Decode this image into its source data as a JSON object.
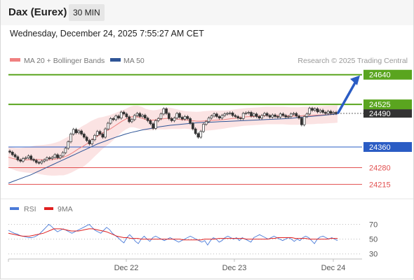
{
  "header": {
    "title": "Dax (Eurex)",
    "timeframe": "30 MIN"
  },
  "datetime": "Wednesday, December 24, 2025 7:55:27 AM CET",
  "legend": {
    "ma20_label": "MA 20 + Bollinger Bands",
    "ma50_label": "MA 50",
    "credit": "Research © 2025 Trading Central"
  },
  "colors": {
    "resistance": "#5aa51f",
    "support": "#2a5cc4",
    "target": "#e25050",
    "ma20": "#f08080",
    "band": "#fbe3e3",
    "ma50": "#2f5597",
    "candle_up": "#2f8a2f",
    "candle_down": "#cc2a2a",
    "current": "#333333",
    "rsi": "#4b7bd8",
    "rsi_ma": "#e02020",
    "arrow": "#2a5cc4"
  },
  "chart_data": [
    {
      "type": "candlestick",
      "title": "Dax (Eurex)",
      "timeframe": "30 MIN",
      "xlabels": [
        "Dec 22",
        "Dec 23",
        "Dec 24"
      ],
      "ylim": [
        24170,
        24680
      ],
      "levels": [
        {
          "value": 24640,
          "label": "24640",
          "kind": "resistance"
        },
        {
          "value": 24525,
          "label": "24525",
          "kind": "resistance"
        },
        {
          "value": 24360,
          "label": "24360",
          "kind": "support"
        },
        {
          "value": 24280,
          "label": "24280",
          "kind": "target"
        },
        {
          "value": 24215,
          "label": "24215",
          "kind": "target"
        }
      ],
      "current": {
        "value": 24490,
        "label": "24490"
      },
      "closes": [
        24340,
        24330,
        24322,
        24310,
        24305,
        24315,
        24318,
        24325,
        24312,
        24308,
        24300,
        24298,
        24305,
        24310,
        24318,
        24315,
        24320,
        24330,
        24318,
        24325,
        24338,
        24355,
        24380,
        24410,
        24428,
        24415,
        24422,
        24410,
        24398,
        24385,
        24372,
        24388,
        24405,
        24420,
        24410,
        24398,
        24430,
        24452,
        24470,
        24466,
        24480,
        24472,
        24495,
        24488,
        24477,
        24458,
        24466,
        24482,
        24490,
        24478,
        24483,
        24472,
        24462,
        24450,
        24432,
        24462,
        24470,
        24488,
        24508,
        24490,
        24470,
        24462,
        24472,
        24490,
        24475,
        24468,
        24478,
        24470,
        24452,
        24430,
        24412,
        24398,
        24420,
        24448,
        24458,
        24472,
        24480,
        24488,
        24478,
        24472,
        24482,
        24488,
        24490,
        24492,
        24482,
        24478,
        24472,
        24470,
        24490,
        24492,
        24494,
        24480,
        24488,
        24478,
        24472,
        24482,
        24490,
        24482,
        24476,
        24484,
        24478,
        24476,
        24488,
        24482,
        24476,
        24478,
        24488,
        24490,
        24480,
        24472,
        24446,
        24478,
        24488,
        24510,
        24502,
        24508,
        24496,
        24502,
        24494,
        24490,
        24498,
        24490,
        24494,
        24490
      ],
      "ma20": [
        24320,
        24316,
        24312,
        24310,
        24310,
        24310,
        24311,
        24312,
        24311,
        24310,
        24310,
        24311,
        24313,
        24316,
        24320,
        24326,
        24334,
        24344,
        24354,
        24362,
        24372,
        24384,
        24395,
        24405,
        24414,
        24422,
        24430,
        24440,
        24450,
        24460,
        24468,
        24476,
        24478,
        24476,
        24472,
        24466,
        24464,
        24464,
        24466,
        24468,
        24470,
        24471,
        24470,
        24468,
        24466,
        24465,
        24464,
        24462,
        24460,
        24460,
        24461,
        24462,
        24463,
        24464,
        24465,
        24466,
        24468,
        24470,
        24472,
        24474,
        24476,
        24477,
        24478,
        24479,
        24480,
        24481,
        24482,
        24482,
        24482,
        24482,
        24482,
        24481,
        24480,
        24480,
        24480,
        24481,
        24482,
        24482,
        24483,
        24484,
        24484,
        24485,
        24486,
        24487,
        24488
      ],
      "ma50": [
        24220,
        24228,
        24236,
        24244,
        24252,
        24262,
        24272,
        24282,
        24292,
        24302,
        24312,
        24322,
        24332,
        24342,
        24352,
        24362,
        24372,
        24380,
        24388,
        24396,
        24403,
        24410,
        24416,
        24421,
        24426,
        24430,
        24434,
        24438,
        24441,
        24444,
        24446,
        24448,
        24450,
        24452,
        24454,
        24455,
        24456,
        24457,
        24458,
        24459,
        24460,
        24461,
        24462,
        24463,
        24464,
        24465,
        24466,
        24467,
        24468,
        24469,
        24470,
        24472,
        24474,
        24476,
        24478,
        24480,
        24482,
        24484,
        24486,
        24488
      ],
      "bollinger_width": [
        40,
        42,
        44,
        46,
        48,
        50,
        52,
        54,
        56,
        58,
        60,
        62,
        64,
        66,
        70,
        72,
        74,
        76,
        78,
        80,
        78,
        76,
        72,
        68,
        62,
        58,
        54,
        50,
        46,
        42,
        40,
        40,
        42,
        44,
        44,
        42,
        40,
        38,
        38,
        40,
        42,
        42,
        40,
        38,
        36,
        34,
        34,
        35,
        36,
        37,
        38,
        38,
        38,
        37,
        36,
        35,
        34,
        34,
        34,
        34,
        34,
        34,
        34,
        34,
        34,
        34,
        34,
        34,
        34,
        34,
        34,
        34,
        34,
        34,
        34,
        34,
        34,
        34,
        34,
        34,
        34,
        34,
        34,
        34,
        34
      ]
    },
    {
      "type": "line",
      "legend": [
        "RSI",
        "9MA"
      ],
      "ylim": [
        25,
        80
      ],
      "yticks": [
        70,
        50,
        30
      ],
      "rsi": [
        62,
        60,
        58,
        57,
        55,
        54,
        53,
        52,
        52,
        53,
        55,
        58,
        62,
        66,
        70,
        67,
        63,
        60,
        62,
        64,
        62,
        60,
        58,
        60,
        62,
        64,
        66,
        68,
        70,
        66,
        62,
        60,
        58,
        62,
        66,
        63,
        58,
        55,
        52,
        48,
        45,
        52,
        56,
        52,
        47,
        44,
        50,
        54,
        50,
        47,
        52,
        54,
        52,
        50,
        48,
        50,
        52,
        50,
        48,
        46,
        48,
        50,
        52,
        54,
        52,
        50,
        48,
        46,
        48,
        42,
        48,
        52,
        50,
        46,
        48,
        52,
        54,
        52,
        50,
        52,
        48,
        52,
        50,
        48,
        46,
        52,
        54,
        56,
        54,
        52,
        50,
        52,
        54,
        52,
        50,
        48,
        50,
        52,
        50,
        47,
        50,
        48,
        52,
        54,
        52,
        48,
        44,
        50,
        53,
        54,
        52,
        50,
        52,
        50,
        48
      ],
      "rsi_ma": [
        58,
        57,
        56,
        55,
        54,
        54,
        54,
        55,
        56,
        57,
        58,
        60,
        62,
        64,
        64,
        64,
        63,
        62,
        61,
        61,
        61,
        62,
        63,
        64,
        64,
        63,
        62,
        61,
        60,
        58,
        56,
        54,
        53,
        52,
        52,
        51,
        51,
        51,
        50,
        50,
        50,
        50,
        50,
        50,
        50,
        50,
        50,
        50,
        50,
        50,
        49,
        49,
        49,
        49,
        49,
        49,
        50,
        50,
        50,
        50,
        51,
        51,
        51,
        51,
        51,
        51,
        51,
        51,
        50,
        50,
        50,
        50,
        50,
        50,
        50,
        51,
        51,
        52,
        52,
        52,
        52,
        52,
        51,
        51,
        51,
        51,
        50,
        50,
        50,
        50,
        50,
        50,
        51,
        51,
        51
      ]
    }
  ]
}
